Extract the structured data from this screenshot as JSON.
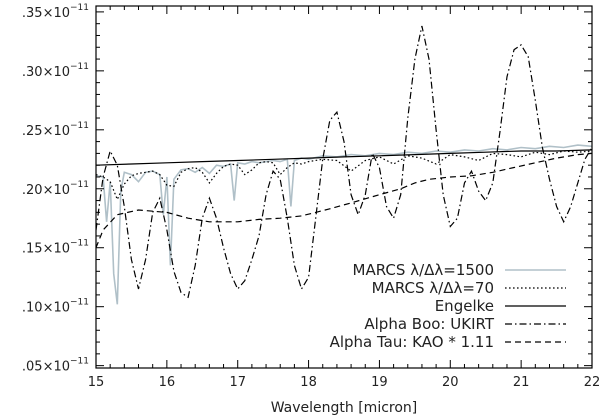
{
  "chart_data": {
    "type": "line",
    "xlabel": "Wavelength [micron]",
    "xlim": [
      15,
      22
    ],
    "ylim": [
      4.8e-13,
      3.55e-12
    ],
    "x_ticks": [
      {
        "value": 15,
        "label": "15"
      },
      {
        "value": 16,
        "label": "16"
      },
      {
        "value": 17,
        "label": "17"
      },
      {
        "value": 18,
        "label": "18"
      },
      {
        "value": 19,
        "label": "19"
      },
      {
        "value": 20,
        "label": "20"
      },
      {
        "value": 21,
        "label": "21"
      },
      {
        "value": 22,
        "label": "22"
      }
    ],
    "y_ticks": [
      {
        "value": 5e-13,
        "mantissa": ".05",
        "times": "×10",
        "exponent": "−11"
      },
      {
        "value": 1e-12,
        "mantissa": ".10",
        "times": "×10",
        "exponent": "−11"
      },
      {
        "value": 1.5e-12,
        "mantissa": ".15",
        "times": "×10",
        "exponent": "−11"
      },
      {
        "value": 2e-12,
        "mantissa": ".20",
        "times": "×10",
        "exponent": "−11"
      },
      {
        "value": 2.5e-12,
        "mantissa": ".25",
        "times": "×10",
        "exponent": "−11"
      },
      {
        "value": 3e-12,
        "mantissa": ".30",
        "times": "×10",
        "exponent": "−11"
      },
      {
        "value": 3.5e-12,
        "mantissa": ".35",
        "times": "×10",
        "exponent": "−11"
      }
    ],
    "legend_position": "bottom-right",
    "series": [
      {
        "name": "MARCS λ/Δλ=1500",
        "color": "#b0c0c8",
        "style": "solid",
        "x": [
          15.0,
          15.1,
          15.15,
          15.2,
          15.25,
          15.3,
          15.35,
          15.4,
          15.5,
          15.6,
          15.7,
          15.8,
          15.9,
          15.95,
          16.0,
          16.05,
          16.1,
          16.2,
          16.3,
          16.4,
          16.5,
          16.6,
          16.7,
          16.8,
          16.9,
          16.95,
          17.0,
          17.1,
          17.2,
          17.3,
          17.5,
          17.6,
          17.7,
          17.75,
          17.8,
          17.9,
          18.0,
          18.2,
          18.4,
          18.6,
          18.8,
          19.0,
          19.2,
          19.4,
          19.6,
          19.8,
          20.0,
          20.2,
          20.4,
          20.6,
          20.8,
          21.0,
          21.2,
          21.4,
          21.6,
          21.8,
          22.0
        ],
        "y": [
          2.11e-12,
          2.1e-12,
          1.72e-12,
          2.06e-12,
          1.28e-12,
          1.02e-12,
          1.98e-12,
          2.14e-12,
          2.12e-12,
          2.06e-12,
          2.14e-12,
          2.15e-12,
          2.12e-12,
          1.78e-12,
          2.1e-12,
          1.35e-12,
          2.08e-12,
          2.16e-12,
          2.17e-12,
          2.14e-12,
          2.18e-12,
          2.13e-12,
          2.2e-12,
          2.19e-12,
          2.21e-12,
          1.9e-12,
          2.22e-12,
          2.21e-12,
          2.23e-12,
          2.22e-12,
          2.24e-12,
          2.23e-12,
          2.25e-12,
          1.85e-12,
          2.24e-12,
          2.26e-12,
          2.25e-12,
          2.28e-12,
          2.27e-12,
          2.29e-12,
          2.28e-12,
          2.3e-12,
          2.29e-12,
          2.31e-12,
          2.3e-12,
          2.32e-12,
          2.31e-12,
          2.33e-12,
          2.32e-12,
          2.34e-12,
          2.33e-12,
          2.35e-12,
          2.34e-12,
          2.36e-12,
          2.35e-12,
          2.37e-12,
          2.36e-12
        ]
      },
      {
        "name": "MARCS λ/Δλ=70",
        "color": "#000000",
        "style": "dotted",
        "x": [
          15.0,
          15.1,
          15.2,
          15.3,
          15.4,
          15.5,
          15.6,
          15.7,
          15.8,
          15.9,
          16.0,
          16.1,
          16.2,
          16.3,
          16.4,
          16.5,
          16.6,
          16.7,
          16.8,
          16.9,
          17.0,
          17.1,
          17.2,
          17.3,
          17.4,
          17.5,
          17.6,
          17.7,
          17.8,
          17.9,
          18.0,
          18.2,
          18.4,
          18.6,
          18.8,
          19.0,
          19.2,
          19.4,
          19.6,
          19.8,
          20.0,
          20.2,
          20.4,
          20.6,
          20.8,
          21.0,
          21.2,
          21.4,
          21.6,
          21.8,
          22.0
        ],
        "y": [
          2.12e-12,
          2.1e-12,
          2.06e-12,
          1.91e-12,
          2.04e-12,
          2.11e-12,
          2.13e-12,
          2.14e-12,
          2.15e-12,
          2.12e-12,
          2.03e-12,
          2.02e-12,
          2.14e-12,
          2.17e-12,
          2.18e-12,
          2.14e-12,
          2.05e-12,
          2.13e-12,
          2.19e-12,
          2.21e-12,
          2.2e-12,
          2.12e-12,
          2.16e-12,
          2.22e-12,
          2.23e-12,
          2.22e-12,
          2.12e-12,
          2.18e-12,
          2.22e-12,
          2.21e-12,
          2.23e-12,
          2.25e-12,
          2.24e-12,
          2.15e-12,
          2.24e-12,
          2.27e-12,
          2.21e-12,
          2.28e-12,
          2.26e-12,
          2.21e-12,
          2.29e-12,
          2.27e-12,
          2.24e-12,
          2.3e-12,
          2.29e-12,
          2.27e-12,
          2.31e-12,
          2.29e-12,
          2.32e-12,
          2.31e-12,
          2.32e-12
        ]
      },
      {
        "name": "Engelke",
        "color": "#000000",
        "style": "solid",
        "x": [
          15.0,
          15.5,
          16.0,
          16.5,
          17.0,
          17.5,
          18.0,
          18.5,
          19.0,
          19.5,
          20.0,
          20.5,
          21.0,
          21.5,
          22.0
        ],
        "y": [
          2.2e-12,
          2.21e-12,
          2.22e-12,
          2.23e-12,
          2.24e-12,
          2.25e-12,
          2.26e-12,
          2.27e-12,
          2.28e-12,
          2.29e-12,
          2.3e-12,
          2.31e-12,
          2.32e-12,
          2.32e-12,
          2.33e-12
        ]
      },
      {
        "name": "Alpha Boo: UKIRT",
        "color": "#000000",
        "style": "dashdot",
        "x": [
          15.0,
          15.1,
          15.2,
          15.3,
          15.4,
          15.5,
          15.6,
          15.7,
          15.8,
          15.9,
          16.0,
          16.1,
          16.2,
          16.3,
          16.4,
          16.5,
          16.6,
          16.7,
          16.8,
          16.9,
          17.0,
          17.1,
          17.2,
          17.3,
          17.4,
          17.5,
          17.6,
          17.7,
          17.8,
          17.9,
          18.0,
          18.1,
          18.2,
          18.3,
          18.4,
          18.5,
          18.6,
          18.7,
          18.8,
          18.9,
          19.0,
          19.1,
          19.2,
          19.3,
          19.4,
          19.5,
          19.6,
          19.7,
          19.8,
          19.9,
          20.0,
          20.1,
          20.2,
          20.3,
          20.4,
          20.5,
          20.6,
          20.7,
          20.8,
          20.9,
          21.0,
          21.1,
          21.2,
          21.3,
          21.4,
          21.5,
          21.6,
          21.7,
          21.8,
          21.9,
          22.0
        ],
        "y": [
          1.65e-12,
          2.1e-12,
          2.32e-12,
          2.2e-12,
          1.85e-12,
          1.4e-12,
          1.15e-12,
          1.4e-12,
          1.8e-12,
          1.92e-12,
          1.65e-12,
          1.3e-12,
          1.12e-12,
          1.08e-12,
          1.35e-12,
          1.75e-12,
          1.92e-12,
          1.75e-12,
          1.5e-12,
          1.28e-12,
          1.15e-12,
          1.22e-12,
          1.4e-12,
          1.6e-12,
          1.95e-12,
          2.15e-12,
          2.08e-12,
          1.75e-12,
          1.35e-12,
          1.15e-12,
          1.25e-12,
          1.75e-12,
          2.25e-12,
          2.58e-12,
          2.65e-12,
          2.4e-12,
          1.95e-12,
          1.78e-12,
          1.95e-12,
          2.3e-12,
          2.18e-12,
          1.85e-12,
          1.75e-12,
          1.95e-12,
          2.6e-12,
          3.1e-12,
          3.38e-12,
          3.1e-12,
          2.5e-12,
          1.95e-12,
          1.68e-12,
          1.75e-12,
          2.05e-12,
          2.15e-12,
          1.98e-12,
          1.9e-12,
          2.05e-12,
          2.48e-12,
          2.95e-12,
          3.18e-12,
          3.22e-12,
          3.12e-12,
          2.75e-12,
          2.35e-12,
          2.08e-12,
          1.85e-12,
          1.72e-12,
          1.85e-12,
          2.05e-12,
          2.25e-12,
          2.35e-12
        ]
      },
      {
        "name": "Alpha Tau: KAO * 1.11",
        "color": "#000000",
        "style": "dashed",
        "x": [
          15.0,
          15.1,
          15.3,
          15.6,
          16.0,
          16.3,
          16.6,
          17.0,
          17.3,
          17.6,
          17.9,
          18.1,
          18.3,
          18.6,
          19.0,
          19.3,
          19.5,
          19.7,
          20.0,
          20.3,
          20.6,
          20.9,
          21.2,
          21.5,
          21.8,
          22.0
        ],
        "y": [
          1.5e-12,
          1.65e-12,
          1.78e-12,
          1.82e-12,
          1.8e-12,
          1.75e-12,
          1.72e-12,
          1.72e-12,
          1.74e-12,
          1.75e-12,
          1.77e-12,
          1.8e-12,
          1.83e-12,
          1.88e-12,
          1.95e-12,
          2e-12,
          2.05e-12,
          2.08e-12,
          2.1e-12,
          2.11e-12,
          2.14e-12,
          2.18e-12,
          2.22e-12,
          2.26e-12,
          2.29e-12,
          2.3e-12
        ]
      }
    ]
  }
}
